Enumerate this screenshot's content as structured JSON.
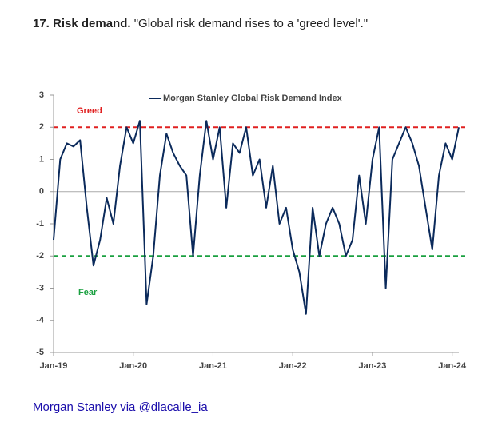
{
  "header": {
    "number_title": "17. Risk demand.",
    "quote": "\"Global risk demand rises to a 'greed level'.\""
  },
  "source_link": "Morgan Stanley via @dlacalle_ia",
  "chart_data": {
    "type": "line",
    "x": [
      "2019-01",
      "2019-02",
      "2019-03",
      "2019-04",
      "2019-05",
      "2019-06",
      "2019-07",
      "2019-08",
      "2019-09",
      "2019-10",
      "2019-11",
      "2019-12",
      "2020-01",
      "2020-02",
      "2020-03",
      "2020-04",
      "2020-05",
      "2020-06",
      "2020-07",
      "2020-08",
      "2020-09",
      "2020-10",
      "2020-11",
      "2020-12",
      "2021-01",
      "2021-02",
      "2021-03",
      "2021-04",
      "2021-05",
      "2021-06",
      "2021-07",
      "2021-08",
      "2021-09",
      "2021-10",
      "2021-11",
      "2021-12",
      "2022-01",
      "2022-02",
      "2022-03",
      "2022-04",
      "2022-05",
      "2022-06",
      "2022-07",
      "2022-08",
      "2022-09",
      "2022-10",
      "2022-11",
      "2022-12",
      "2023-01",
      "2023-02",
      "2023-03",
      "2023-04",
      "2023-05",
      "2023-06",
      "2023-07",
      "2023-08",
      "2023-09",
      "2023-10",
      "2023-11",
      "2023-12",
      "2024-01",
      "2024-02"
    ],
    "series": [
      {
        "name": "Morgan Stanley Global Risk Demand Index",
        "color": "#0b2a5b",
        "values": [
          -1.5,
          1.0,
          1.5,
          1.4,
          1.6,
          -0.5,
          -2.3,
          -1.5,
          -0.2,
          -1.0,
          0.8,
          2.0,
          1.5,
          2.2,
          -3.5,
          -2.0,
          0.5,
          1.8,
          1.2,
          0.8,
          0.5,
          -2.0,
          0.5,
          2.2,
          1.0,
          2.0,
          -0.5,
          1.5,
          1.2,
          2.0,
          0.5,
          1.0,
          -0.5,
          0.8,
          -1.0,
          -0.5,
          -1.8,
          -2.5,
          -3.8,
          -0.5,
          -2.0,
          -1.0,
          -0.5,
          -1.0,
          -2.0,
          -1.5,
          0.5,
          -1.0,
          1.0,
          2.0,
          -3.0,
          1.0,
          1.5,
          2.0,
          1.5,
          0.8,
          -0.5,
          -1.8,
          0.5,
          1.5,
          1.0,
          2.0
        ]
      }
    ],
    "xlim": [
      "2019-01",
      "2024-02"
    ],
    "xticks": [
      {
        "value": "2019-01",
        "label": "Jan-19"
      },
      {
        "value": "2020-01",
        "label": "Jan-20"
      },
      {
        "value": "2021-01",
        "label": "Jan-21"
      },
      {
        "value": "2022-01",
        "label": "Jan-22"
      },
      {
        "value": "2023-01",
        "label": "Jan-23"
      },
      {
        "value": "2024-01",
        "label": "Jan-24"
      }
    ],
    "ylim": [
      -5,
      3
    ],
    "yticks": [
      -5,
      -4,
      -3,
      -2,
      -1,
      0,
      1,
      2,
      3
    ],
    "reference_lines": [
      {
        "value": 2,
        "label": "Greed",
        "color": "#e02020"
      },
      {
        "value": -2,
        "label": "Fear",
        "color": "#1aa040"
      }
    ],
    "legend": "top"
  }
}
